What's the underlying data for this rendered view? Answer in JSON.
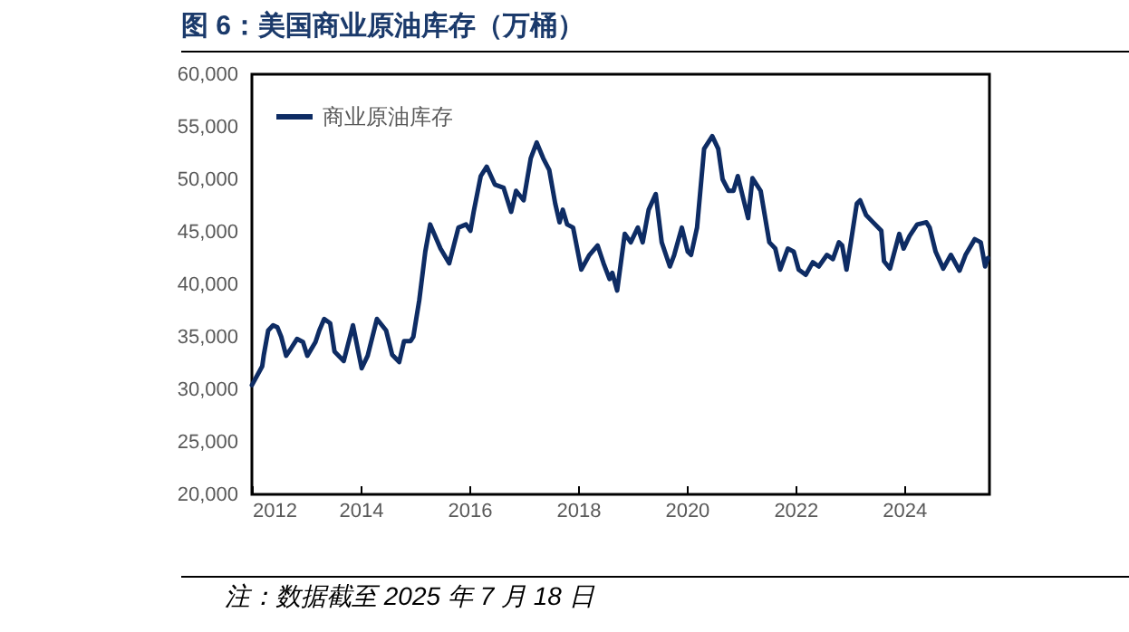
{
  "chart_data": {
    "type": "line",
    "title": "图 6：美国商业原油库存（万桶）",
    "annotations": [
      "注：数据截至 2025 年 7 月 18 日"
    ],
    "x": [
      2012.0,
      2012.19,
      2012.22,
      2012.3,
      2012.39,
      2012.47,
      2012.54,
      2012.63,
      2012.72,
      2012.83,
      2012.94,
      2013.02,
      2013.17,
      2013.24,
      2013.33,
      2013.44,
      2013.52,
      2013.69,
      2013.86,
      2014.02,
      2014.13,
      2014.3,
      2014.47,
      2014.58,
      2014.71,
      2014.8,
      2014.92,
      2014.97,
      2015.08,
      2015.19,
      2015.28,
      2015.47,
      2015.63,
      2015.8,
      2015.94,
      2016.02,
      2016.08,
      2016.21,
      2016.32,
      2016.47,
      2016.63,
      2016.77,
      2016.86,
      2017.0,
      2017.13,
      2017.24,
      2017.36,
      2017.47,
      2017.58,
      2017.66,
      2017.72,
      2017.8,
      2017.91,
      2018.06,
      2018.21,
      2018.36,
      2018.47,
      2018.58,
      2018.63,
      2018.72,
      2018.86,
      2018.97,
      2019.1,
      2019.19,
      2019.3,
      2019.43,
      2019.54,
      2019.69,
      2019.77,
      2019.91,
      2020.02,
      2020.08,
      2020.19,
      2020.32,
      2020.47,
      2020.58,
      2020.66,
      2020.77,
      2020.86,
      2020.94,
      2021.02,
      2021.13,
      2021.21,
      2021.36,
      2021.52,
      2021.63,
      2021.72,
      2021.86,
      2021.97,
      2022.06,
      2022.19,
      2022.32,
      2022.43,
      2022.58,
      2022.69,
      2022.8,
      2022.86,
      2022.94,
      2023.02,
      2023.13,
      2023.19,
      2023.3,
      2023.41,
      2023.58,
      2023.63,
      2023.74,
      2023.91,
      2023.99,
      2024.1,
      2024.24,
      2024.41,
      2024.47,
      2024.58,
      2024.72,
      2024.86,
      2025.02,
      2025.13,
      2025.3,
      2025.41,
      2025.49,
      2025.54
    ],
    "series": [
      {
        "name": "商业原油库存",
        "color": "#0e2c64",
        "values": [
          30400,
          32200,
          33300,
          35600,
          36100,
          35900,
          35000,
          33200,
          33900,
          34800,
          34500,
          33200,
          34500,
          35600,
          36700,
          36300,
          33600,
          32700,
          36100,
          32000,
          33200,
          36700,
          35600,
          33300,
          32600,
          34600,
          34600,
          35000,
          38500,
          43100,
          45700,
          43400,
          42000,
          45400,
          45700,
          45100,
          46900,
          50300,
          51200,
          49500,
          49200,
          46900,
          48900,
          48000,
          52000,
          53500,
          52000,
          50900,
          47700,
          45900,
          47100,
          45700,
          45400,
          41400,
          42800,
          43700,
          42000,
          40500,
          41100,
          39400,
          44800,
          44000,
          45400,
          44000,
          47100,
          48600,
          44000,
          41700,
          42800,
          45400,
          43100,
          42800,
          45400,
          52900,
          54100,
          52900,
          50000,
          48900,
          48900,
          50300,
          48600,
          46300,
          50100,
          48900,
          44000,
          43400,
          41400,
          43400,
          43100,
          41400,
          40900,
          42100,
          41700,
          42800,
          42400,
          44000,
          43700,
          41400,
          44000,
          47700,
          48000,
          46600,
          46000,
          45100,
          42200,
          41500,
          44800,
          43400,
          44600,
          45700,
          45900,
          45400,
          43100,
          41500,
          42800,
          41300,
          42800,
          44300,
          44000,
          41700,
          42500
        ]
      }
    ],
    "xlim": [
      2012,
      2025.57
    ],
    "xticks": [
      2012,
      2014,
      2016,
      2018,
      2020,
      2022,
      2024
    ],
    "ylim": [
      20000,
      60000
    ],
    "yticks": [
      {
        "value": 20000,
        "label": "20,000"
      },
      {
        "value": 25000,
        "label": "25,000"
      },
      {
        "value": 30000,
        "label": "30,000"
      },
      {
        "value": 35000,
        "label": "35,000"
      },
      {
        "value": 40000,
        "label": "40,000"
      },
      {
        "value": 45000,
        "label": "45,000"
      },
      {
        "value": 50000,
        "label": "50,000"
      },
      {
        "value": 55000,
        "label": "55,000"
      },
      {
        "value": 60000,
        "label": "60,000"
      }
    ],
    "grid": false,
    "legend": "top left",
    "marker": "none",
    "line_style": "solid"
  }
}
